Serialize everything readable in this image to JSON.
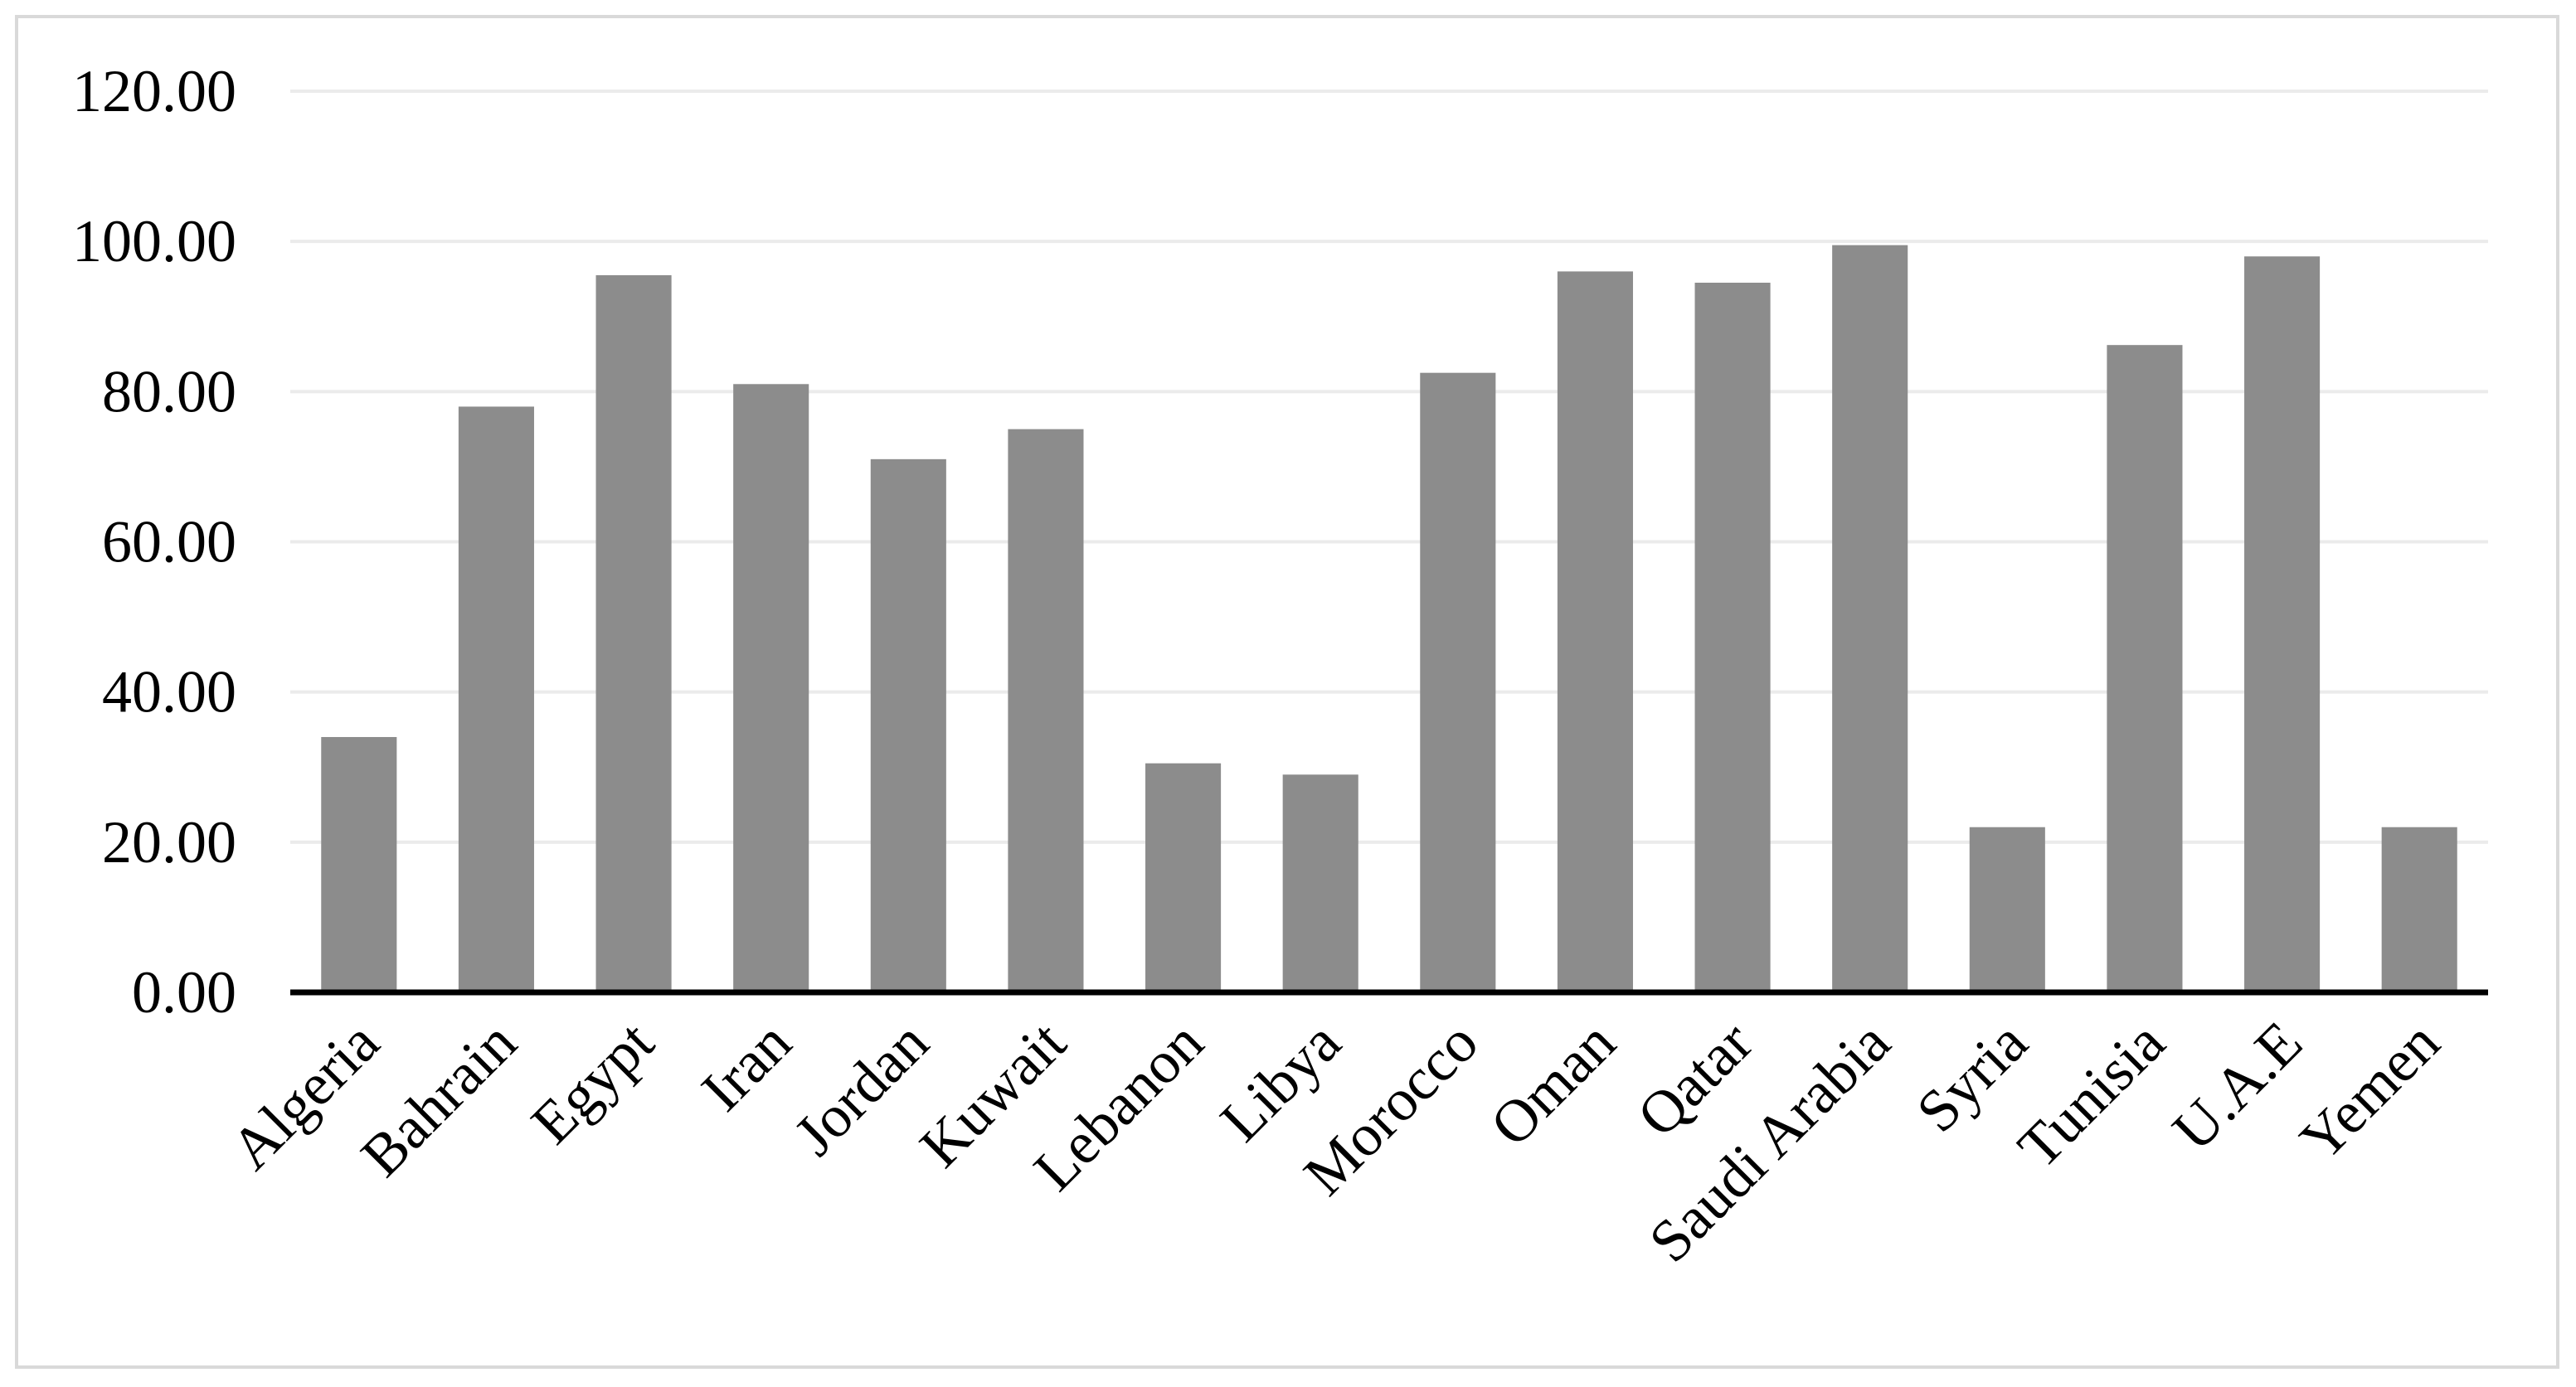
{
  "chart_data": {
    "type": "bar",
    "categories": [
      "Algeria",
      "Bahrain",
      "Egypt",
      "Iran",
      "Jordan",
      "Kuwait",
      "Lebanon",
      "Libya",
      "Morocco",
      "Oman",
      "Qatar",
      "Saudi Arabia",
      "Syria",
      "Tunisia",
      "U.A.E",
      "Yemen"
    ],
    "series": [
      {
        "values": [
          34.0,
          78.0,
          95.5,
          81.0,
          71.0,
          75.0,
          30.5,
          29.0,
          82.5,
          96.0,
          94.5,
          99.5,
          22.0,
          86.2,
          98.0,
          22.0
        ]
      }
    ],
    "y_ticks": [
      "0.00",
      "20.00",
      "40.00",
      "60.00",
      "80.00",
      "100.00",
      "120.00"
    ],
    "ylim": [
      0,
      120
    ],
    "title": "",
    "xlabel": "",
    "ylabel": "",
    "grid": true,
    "legend": "none",
    "colors": {
      "bar": "#8c8c8c",
      "gridline": "#ebebeb",
      "axis": "#000000",
      "frame": "#d9d9d9"
    }
  }
}
